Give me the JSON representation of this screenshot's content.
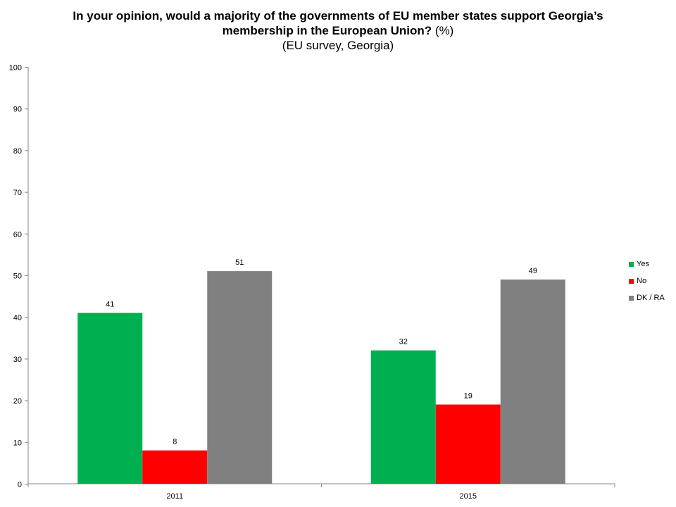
{
  "title": {
    "line1": "In your opinion, would a majority of the governments of EU member states support Georgia’s",
    "line2_bold": "membership in the European Union?",
    "line2_unit": "(%)",
    "subtitle": "(EU survey, Georgia)"
  },
  "chart_data": {
    "type": "bar",
    "title": "In your opinion, would a majority of the governments of EU member states support Georgia’s membership in the European Union? (%)",
    "subtitle": "(EU survey, Georgia)",
    "categories": [
      "2011",
      "2015"
    ],
    "series": [
      {
        "name": "Yes",
        "values": [
          41,
          32
        ],
        "color": "#00b050"
      },
      {
        "name": "No",
        "values": [
          8,
          19
        ],
        "color": "#ff0000"
      },
      {
        "name": "DK / RA",
        "values": [
          51,
          49
        ],
        "color": "#808080"
      }
    ],
    "ylim": [
      0,
      100
    ],
    "yticks": [
      0,
      10,
      20,
      30,
      40,
      50,
      60,
      70,
      80,
      90,
      100
    ],
    "xlabel": "",
    "ylabel": "",
    "grid": false,
    "legend_position": "right"
  }
}
